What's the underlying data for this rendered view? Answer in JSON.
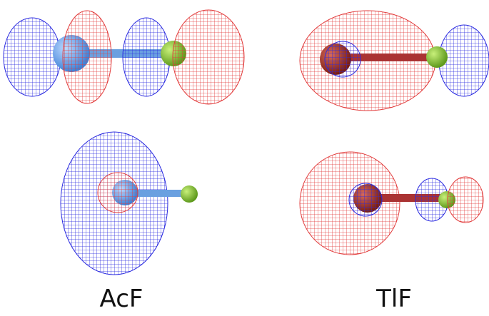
{
  "panels": [
    {
      "label": "AcF"
    },
    {
      "label": "TlF"
    }
  ]
}
